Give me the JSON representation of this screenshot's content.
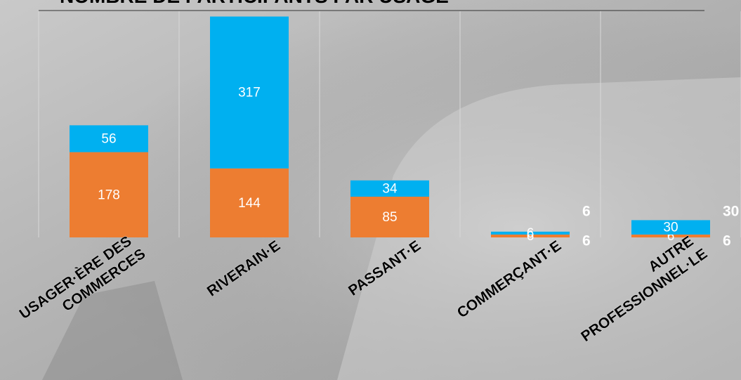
{
  "chart_data": {
    "type": "stacked_bar",
    "title": "NOMBRE DE PARTICIPANTS PAR USAGE",
    "categories": [
      "USAGER·ÈRE DES COMMERCES",
      "RIVERAIN·E",
      "PASSANT·E",
      "COMMERÇANT·E",
      "AUTRE PROFESSIONNEL·LE"
    ],
    "series": [
      {
        "color": "#ED7D31",
        "values": [
          178,
          144,
          85,
          6,
          6
        ]
      },
      {
        "color": "#00B0F0",
        "values": [
          56,
          317,
          34,
          6,
          30
        ]
      }
    ],
    "ylim": [
      0,
      475
    ]
  }
}
